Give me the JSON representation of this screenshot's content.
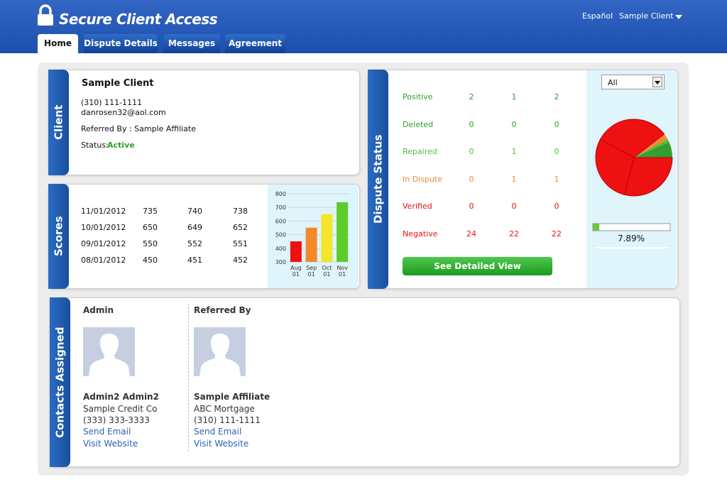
{
  "header": {
    "title": "Secure Client Access",
    "language": "Español",
    "user": "Sample Client"
  },
  "tabs": [
    "Home",
    "Dispute Details",
    "Messages",
    "Agreement"
  ],
  "client": {
    "heading": "Client",
    "name": "Sample Client",
    "phone": "(310) 111-1111",
    "email": "danrosen32@aol.com",
    "referred_by": "Referred By : Sample Affiliate",
    "status_label": "Status:",
    "status": "Active"
  },
  "scores": {
    "heading": "Scores",
    "rows": [
      [
        "11/01/2012",
        735,
        740,
        738
      ],
      [
        "10/01/2012",
        650,
        649,
        652
      ],
      [
        "09/01/2012",
        550,
        552,
        551
      ],
      [
        "08/01/2012",
        450,
        451,
        452
      ]
    ],
    "chart": {
      "type": "bar",
      "categories": [
        "Aug 01",
        "Sep 01",
        "Oct 01",
        "Nov 01"
      ],
      "values": [
        451,
        551,
        650,
        738
      ],
      "colors": [
        "#ee1111",
        "#f5892a",
        "#f2e52a",
        "#5ccc2a"
      ],
      "ylim": [
        300,
        800
      ],
      "yticks": [
        300,
        400,
        500,
        600,
        700,
        800
      ],
      "grid": true
    }
  },
  "dispute_status": {
    "heading": "Dispute Status",
    "rows": [
      {
        "label": "Positive",
        "values": [
          2,
          1,
          2
        ],
        "color": "#2f9e2f"
      },
      {
        "label": "Deleted",
        "values": [
          0,
          0,
          0
        ],
        "color": "#2f9e2f"
      },
      {
        "label": "Repaired",
        "values": [
          0,
          1,
          0
        ],
        "color": "#55bb3a"
      },
      {
        "label": "In Dispute",
        "values": [
          0,
          1,
          1
        ],
        "color": "#f08a30"
      },
      {
        "label": "Verified",
        "values": [
          0,
          0,
          0
        ],
        "color": "#e01515"
      },
      {
        "label": "Negative",
        "values": [
          24,
          22,
          22
        ],
        "color": "#ee1111"
      }
    ],
    "filter": "All",
    "progress": {
      "value": 7.89,
      "label": "7.89%"
    },
    "button": "See Detailed View"
  },
  "contacts": {
    "heading": "Contacts Assigned",
    "people": [
      {
        "role": "Admin",
        "name": "Admin2 Admin2",
        "company": "Sample Credit Co",
        "phone": "(333) 333-3333",
        "email_link": "Send Email",
        "website_link": "Visit Website"
      },
      {
        "role": "Referred By",
        "name": "Sample Affiliate",
        "company": "ABC Mortgage",
        "phone": "(310) 111-1111",
        "email_link": "Send Email",
        "website_link": "Visit Website"
      }
    ]
  }
}
